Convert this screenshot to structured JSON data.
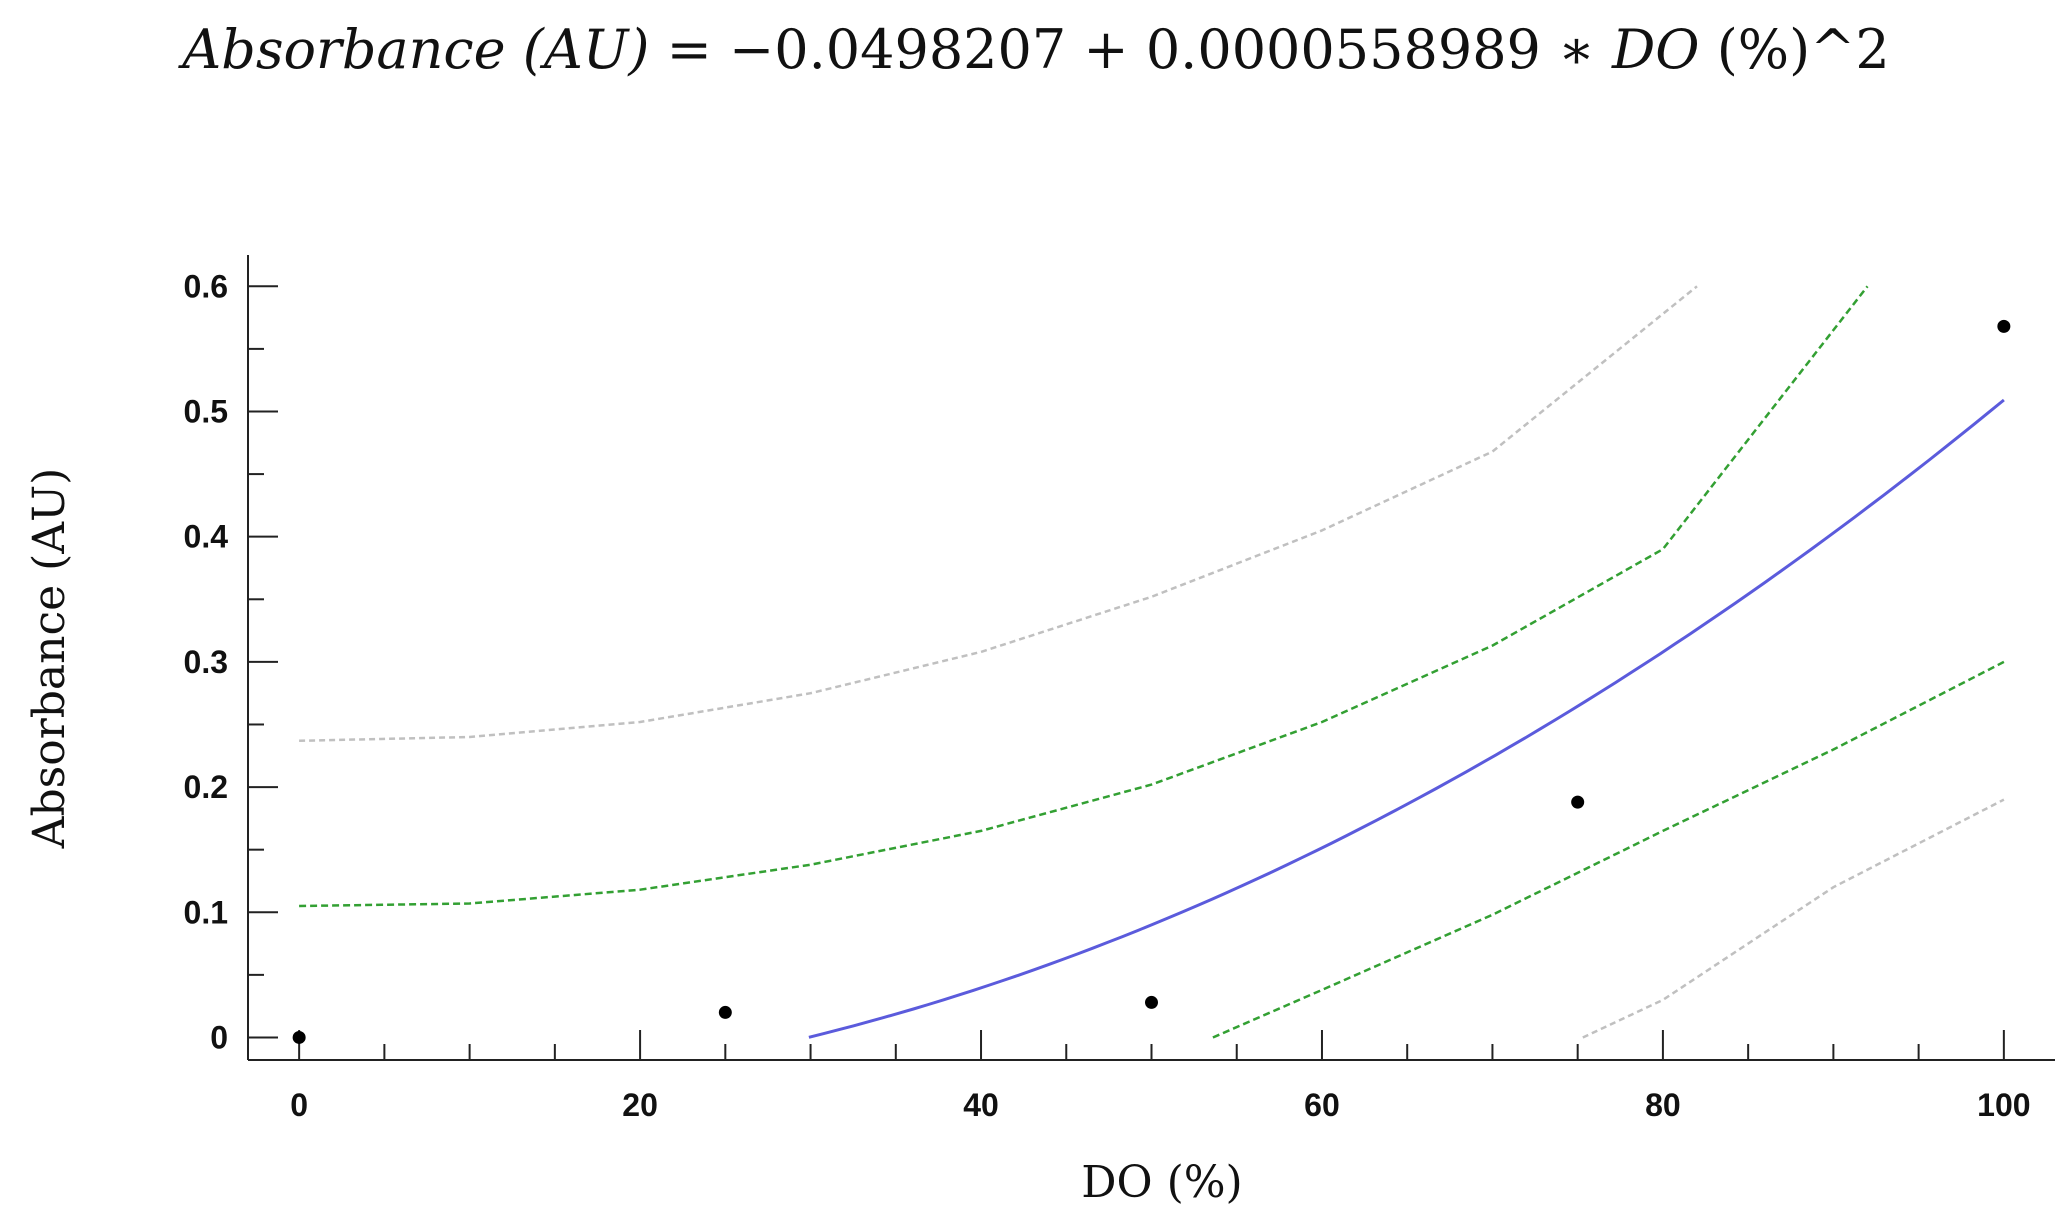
{
  "title": {
    "lhs": "Absorbance (AU)",
    "eq": " = −0.0498207 + 0.0000558989 ∗ ",
    "var": "DO",
    "tail": " (%)^2"
  },
  "chart_data": {
    "type": "scatter",
    "title": "Absorbance (AU) = −0.0498207 + 0.0000558989 ∗ DO (%)^2",
    "xlabel": "DO (%)",
    "ylabel": "Absorbance (AU)",
    "xlim": [
      -3,
      103
    ],
    "ylim": [
      -0.018,
      0.625
    ],
    "x_ticks": [
      0,
      20,
      40,
      60,
      80,
      100
    ],
    "y_ticks": [
      0,
      0.1,
      0.2,
      0.3,
      0.4,
      0.5,
      0.6
    ],
    "x_tick_labels": [
      "0",
      "20",
      "40",
      "60",
      "80",
      "100"
    ],
    "y_tick_labels": [
      "0",
      "0.1",
      "0.2",
      "0.3",
      "0.4",
      "0.5",
      "0.6"
    ],
    "grid": false,
    "points": {
      "x": [
        0,
        25,
        50,
        75,
        100
      ],
      "y": [
        0.0,
        0.02,
        0.028,
        0.188,
        0.568
      ],
      "color": "#000000"
    },
    "fit": {
      "intercept": -0.0498207,
      "coef_x2": 5.58989e-05,
      "x_range": [
        29.9,
        100
      ],
      "color": "#5b5bdc"
    },
    "confidence_band": {
      "color": "#33a033",
      "upper": {
        "x": [
          0,
          10,
          20,
          30,
          40,
          50,
          60,
          70,
          80,
          92
        ],
        "y": [
          0.105,
          0.107,
          0.118,
          0.138,
          0.165,
          0.202,
          0.252,
          0.313,
          0.39,
          0.6
        ]
      },
      "lower": {
        "x": [
          53.6,
          60,
          70,
          80,
          90,
          100
        ],
        "y": [
          0.0,
          0.038,
          0.098,
          0.165,
          0.23,
          0.3
        ]
      }
    },
    "prediction_band": {
      "color": "#c0c0c0",
      "upper": {
        "x": [
          0,
          10,
          20,
          30,
          40,
          50,
          60,
          70,
          82
        ],
        "y": [
          0.237,
          0.24,
          0.252,
          0.275,
          0.308,
          0.352,
          0.405,
          0.468,
          0.6
        ]
      },
      "lower": {
        "x": [
          75.3,
          80,
          90,
          100
        ],
        "y": [
          0.0,
          0.03,
          0.12,
          0.19
        ]
      }
    }
  }
}
